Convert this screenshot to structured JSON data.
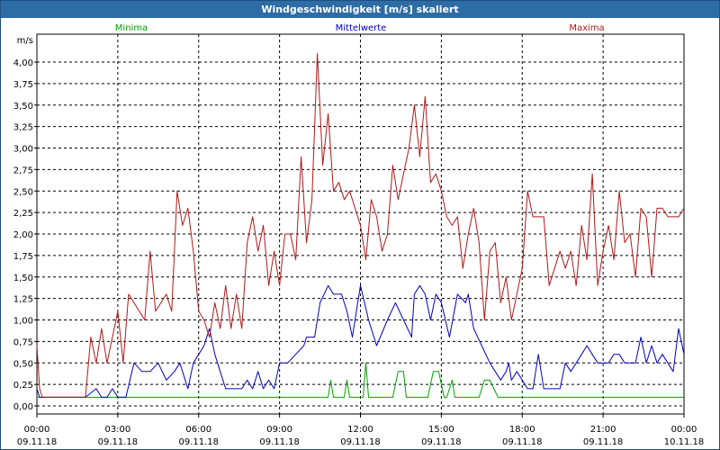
{
  "window": {
    "title": "Windgeschwindigkeit [m/s] skaliert"
  },
  "chart_data": {
    "type": "line",
    "title": "Windgeschwindigkeit [m/s] skaliert",
    "ylabel": "m/s",
    "ylim": [
      0,
      4.25
    ],
    "yticks": [
      "0,00",
      "0,25",
      "0,50",
      "0,75",
      "1,00",
      "1,25",
      "1,50",
      "1,75",
      "2,00",
      "2,25",
      "2,50",
      "2,75",
      "3,00",
      "3,25",
      "3,50",
      "3,75",
      "4,00"
    ],
    "xticks": [
      {
        "time": "00:00",
        "date": "09.11.18"
      },
      {
        "time": "03:00",
        "date": "09.11.18"
      },
      {
        "time": "06:00",
        "date": "09.11.18"
      },
      {
        "time": "09:00",
        "date": "09.11.18"
      },
      {
        "time": "12:00",
        "date": "09.11.18"
      },
      {
        "time": "15:00",
        "date": "09.11.18"
      },
      {
        "time": "18:00",
        "date": "09.11.18"
      },
      {
        "time": "21:00",
        "date": "09.11.18"
      },
      {
        "time": "00:00",
        "date": "10.11.18"
      }
    ],
    "grid": true,
    "legend_position": "top",
    "series": [
      {
        "name": "Minima",
        "color": "#00a000",
        "x_hours": [
          0,
          0.1,
          0.3,
          10.8,
          10.9,
          11.0,
          11.4,
          11.5,
          11.6,
          12.1,
          12.2,
          12.3,
          13.2,
          13.4,
          13.6,
          13.7,
          14.5,
          14.7,
          14.9,
          15.1,
          15.2,
          15.4,
          15.5,
          16.4,
          16.6,
          16.8,
          17.1,
          17.2,
          17.4,
          24
        ],
        "values": [
          0.1,
          0.1,
          0.1,
          0.1,
          0.3,
          0.1,
          0.1,
          0.3,
          0.1,
          0.1,
          0.5,
          0.1,
          0.1,
          0.4,
          0.4,
          0.1,
          0.1,
          0.4,
          0.4,
          0.1,
          0.1,
          0.3,
          0.1,
          0.1,
          0.3,
          0.3,
          0.1,
          0.1,
          0.1,
          0.1
        ]
      },
      {
        "name": "Mittelwerte",
        "color": "#0000c0",
        "x_hours": [
          0,
          0.1,
          0.2,
          1.8,
          2.2,
          2.4,
          2.6,
          2.8,
          3.0,
          3.3,
          3.6,
          3.9,
          4.2,
          4.5,
          4.8,
          5.1,
          5.3,
          5.6,
          5.8,
          6.0,
          6.2,
          6.4,
          6.6,
          6.8,
          7.0,
          7.2,
          7.6,
          7.8,
          8.0,
          8.2,
          8.4,
          8.6,
          8.8,
          9.0,
          9.3,
          9.6,
          9.9,
          10.0,
          10.3,
          10.5,
          10.8,
          11.0,
          11.3,
          11.5,
          11.7,
          12.0,
          12.3,
          12.6,
          13.0,
          13.3,
          13.6,
          13.9,
          14.0,
          14.2,
          14.4,
          14.6,
          14.8,
          15.0,
          15.3,
          15.6,
          15.9,
          16.0,
          16.2,
          16.5,
          16.8,
          17.0,
          17.2,
          17.4,
          17.5,
          17.6,
          17.8,
          18.0,
          18.2,
          18.4,
          18.6,
          18.8,
          19.0,
          19.2,
          19.4,
          19.6,
          19.8,
          20.0,
          20.2,
          20.4,
          20.6,
          20.8,
          21.0,
          21.2,
          21.4,
          21.6,
          21.8,
          22.0,
          22.2,
          22.4,
          22.6,
          22.8,
          23.0,
          23.2,
          23.4,
          23.6,
          23.8,
          24
        ],
        "values": [
          0.2,
          0.1,
          0.1,
          0.1,
          0.2,
          0.1,
          0.1,
          0.2,
          0.1,
          0.1,
          0.5,
          0.4,
          0.4,
          0.5,
          0.3,
          0.4,
          0.5,
          0.2,
          0.5,
          0.6,
          0.7,
          0.9,
          0.6,
          0.4,
          0.2,
          0.2,
          0.2,
          0.3,
          0.2,
          0.4,
          0.2,
          0.3,
          0.2,
          0.5,
          0.5,
          0.6,
          0.7,
          0.8,
          0.8,
          1.2,
          1.4,
          1.3,
          1.3,
          1.1,
          0.8,
          1.4,
          1.0,
          0.7,
          1.0,
          1.2,
          1.0,
          0.8,
          1.3,
          1.4,
          1.3,
          1.0,
          1.3,
          1.2,
          0.8,
          1.3,
          1.2,
          1.3,
          0.9,
          0.7,
          0.5,
          0.4,
          0.3,
          0.4,
          0.5,
          0.3,
          0.4,
          0.3,
          0.2,
          0.2,
          0.6,
          0.2,
          0.2,
          0.2,
          0.2,
          0.5,
          0.4,
          0.5,
          0.6,
          0.7,
          0.6,
          0.5,
          0.5,
          0.5,
          0.6,
          0.6,
          0.5,
          0.5,
          0.5,
          0.8,
          0.5,
          0.7,
          0.5,
          0.6,
          0.5,
          0.4,
          0.9,
          0.6
        ]
      },
      {
        "name": "Maxima",
        "color": "#b01818",
        "x_hours": [
          0,
          0.1,
          0.2,
          1.8,
          2.0,
          2.2,
          2.4,
          2.6,
          2.8,
          3.0,
          3.2,
          3.4,
          3.6,
          3.8,
          4.0,
          4.2,
          4.4,
          4.6,
          4.8,
          5.0,
          5.2,
          5.4,
          5.6,
          5.8,
          6.0,
          6.2,
          6.4,
          6.6,
          6.8,
          7.0,
          7.2,
          7.4,
          7.6,
          7.8,
          8.0,
          8.2,
          8.4,
          8.6,
          8.8,
          9.0,
          9.2,
          9.4,
          9.6,
          9.8,
          10.0,
          10.2,
          10.4,
          10.6,
          10.8,
          11.0,
          11.2,
          11.4,
          11.6,
          11.8,
          12.0,
          12.2,
          12.4,
          12.6,
          12.8,
          13.0,
          13.2,
          13.4,
          13.6,
          13.8,
          14.0,
          14.2,
          14.4,
          14.6,
          14.8,
          15.0,
          15.2,
          15.4,
          15.6,
          15.8,
          16.0,
          16.2,
          16.4,
          16.6,
          16.8,
          17.0,
          17.2,
          17.4,
          17.6,
          17.8,
          18.0,
          18.2,
          18.4,
          18.6,
          18.8,
          19.0,
          19.2,
          19.4,
          19.6,
          19.8,
          20.0,
          20.2,
          20.4,
          20.6,
          20.8,
          21.0,
          21.2,
          21.4,
          21.6,
          21.8,
          22.0,
          22.2,
          22.4,
          22.6,
          22.8,
          23.0,
          23.2,
          23.4,
          23.6,
          23.8,
          24
        ],
        "values": [
          0.7,
          0.2,
          0.1,
          0.1,
          0.8,
          0.5,
          0.9,
          0.5,
          0.8,
          1.1,
          0.5,
          1.3,
          1.2,
          1.1,
          1.0,
          1.8,
          1.1,
          1.2,
          1.3,
          1.1,
          2.5,
          2.1,
          2.3,
          1.8,
          1.1,
          1.0,
          0.8,
          1.2,
          0.9,
          1.4,
          0.9,
          1.3,
          0.9,
          1.9,
          2.2,
          1.8,
          2.1,
          1.4,
          1.8,
          1.4,
          2.0,
          2.0,
          1.7,
          2.9,
          1.9,
          2.4,
          4.1,
          2.8,
          3.4,
          2.5,
          2.6,
          2.4,
          2.5,
          2.3,
          2.1,
          1.7,
          2.4,
          2.2,
          1.8,
          2.0,
          2.8,
          2.4,
          2.7,
          3.0,
          3.5,
          2.9,
          3.6,
          2.6,
          2.7,
          2.5,
          2.2,
          2.1,
          2.2,
          1.6,
          2.0,
          2.3,
          1.9,
          1.0,
          1.8,
          1.9,
          1.2,
          1.5,
          1.0,
          1.3,
          1.6,
          2.5,
          2.2,
          2.2,
          2.2,
          1.4,
          1.6,
          1.8,
          1.6,
          1.8,
          1.4,
          2.1,
          1.7,
          2.7,
          1.4,
          1.8,
          2.1,
          1.7,
          2.5,
          1.9,
          2.0,
          1.5,
          2.3,
          2.2,
          1.5,
          2.3,
          2.3,
          2.2,
          2.2,
          2.2,
          2.3
        ]
      }
    ]
  }
}
